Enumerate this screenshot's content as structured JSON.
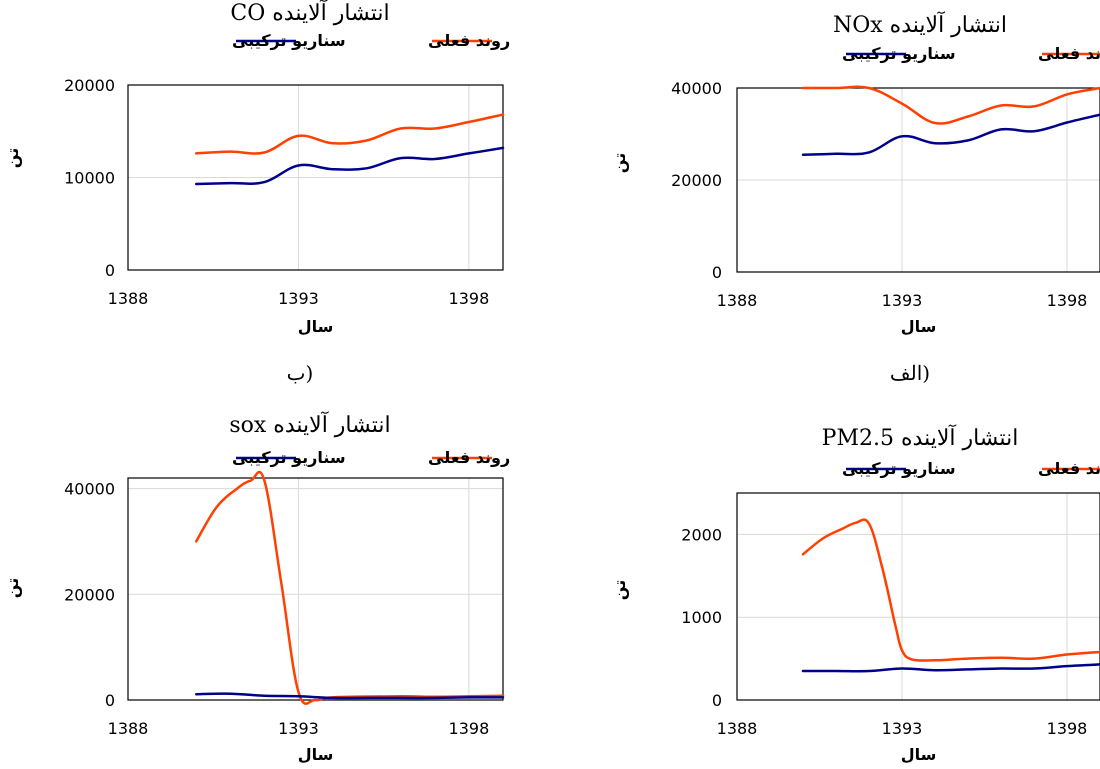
{
  "colors": {
    "actual": "#ff4000",
    "scenario": "#00008b",
    "grid": "#d9d9d9"
  },
  "captions": {
    "left": "ب)",
    "right": "الف)"
  },
  "chart_data": [
    {
      "id": "co",
      "type": "line",
      "title": "انتشار آلاینده CO",
      "xlabel": "سال",
      "ylabel": "تن",
      "xlim": [
        1388,
        1399
      ],
      "ylim": [
        0,
        20000
      ],
      "yticks": [
        0,
        10000,
        20000
      ],
      "xticks": [
        1388,
        1393,
        1398
      ],
      "grid": true,
      "legend_position": "top",
      "series": [
        {
          "name": "روند فعلی",
          "color_key": "actual",
          "x": [
            1390,
            1391,
            1392,
            1393,
            1394,
            1395,
            1396,
            1397,
            1398,
            1399
          ],
          "y": [
            12600,
            12800,
            12700,
            14500,
            13700,
            14000,
            15300,
            15300,
            16000,
            16800
          ]
        },
        {
          "name": "سناریو ترکیبی",
          "color_key": "scenario",
          "x": [
            1390,
            1391,
            1392,
            1393,
            1394,
            1395,
            1396,
            1397,
            1398,
            1399
          ],
          "y": [
            9300,
            9400,
            9500,
            11300,
            10900,
            11000,
            12100,
            12000,
            12600,
            13200
          ]
        }
      ]
    },
    {
      "id": "nox",
      "type": "line",
      "title": "انتشار آلاینده NOx",
      "xlabel": "سال",
      "ylabel": "تن",
      "xlim": [
        1388,
        1399
      ],
      "ylim": [
        0,
        40000
      ],
      "yticks": [
        0,
        20000,
        40000
      ],
      "xticks": [
        1388,
        1393,
        1398
      ],
      "grid": true,
      "legend_position": "top",
      "series": [
        {
          "name": "روند فعلی",
          "color_key": "actual",
          "x": [
            1390,
            1391,
            1392,
            1393,
            1394,
            1395,
            1396,
            1397,
            1398,
            1399
          ],
          "y": [
            41200,
            42500,
            42000,
            36600,
            32400,
            33800,
            36200,
            36000,
            38600,
            40500
          ]
        },
        {
          "name": "سناریو ترکیبی",
          "color_key": "scenario",
          "x": [
            1390,
            1391,
            1392,
            1393,
            1394,
            1395,
            1396,
            1397,
            1398,
            1399
          ],
          "y": [
            25500,
            25700,
            26000,
            29500,
            28000,
            28600,
            31000,
            30600,
            32500,
            34200
          ]
        }
      ]
    },
    {
      "id": "sox",
      "type": "line",
      "title": "انتشار آلاینده sox",
      "xlabel": "سال",
      "ylabel": "تن",
      "xlim": [
        1388,
        1399
      ],
      "ylim": [
        0,
        42000
      ],
      "yticks": [
        0,
        20000,
        40000
      ],
      "xticks": [
        1388,
        1393,
        1398
      ],
      "grid": true,
      "legend_position": "top",
      "series": [
        {
          "name": "روند فعلی",
          "color_key": "actual",
          "x": [
            1390,
            1390.6,
            1391.2,
            1391.6,
            1392,
            1392.5,
            1393,
            1393.5,
            1394,
            1396,
            1397,
            1398,
            1399
          ],
          "y": [
            30000,
            36500,
            40000,
            41500,
            41500,
            22000,
            1500,
            0,
            500,
            700,
            600,
            700,
            800
          ]
        },
        {
          "name": "سناریو ترکیبی",
          "color_key": "scenario",
          "x": [
            1390,
            1391,
            1392,
            1393,
            1394,
            1395,
            1396,
            1397,
            1398,
            1399
          ],
          "y": [
            1100,
            1200,
            800,
            700,
            400,
            400,
            400,
            400,
            500,
            500
          ]
        }
      ]
    },
    {
      "id": "pm25",
      "type": "line",
      "title": "انتشار آلاینده PM2.5",
      "xlabel": "سال",
      "ylabel": "تن",
      "xlim": [
        1388,
        1399
      ],
      "ylim": [
        0,
        2500
      ],
      "yticks": [
        0,
        1000,
        2000
      ],
      "xticks": [
        1388,
        1393,
        1398
      ],
      "grid": true,
      "legend_position": "top",
      "series": [
        {
          "name": "روند فعلی",
          "color_key": "actual",
          "x": [
            1390,
            1390.6,
            1391.2,
            1391.6,
            1392,
            1392.4,
            1392.8,
            1393,
            1393.3,
            1394,
            1395,
            1396,
            1397,
            1398,
            1399
          ],
          "y": [
            1760,
            1950,
            2070,
            2140,
            2130,
            1600,
            900,
            600,
            490,
            480,
            500,
            510,
            500,
            550,
            580
          ]
        },
        {
          "name": "سناریو ترکیبی",
          "color_key": "scenario",
          "x": [
            1390,
            1391,
            1392,
            1393,
            1394,
            1395,
            1396,
            1397,
            1398,
            1399
          ],
          "y": [
            350,
            350,
            350,
            380,
            360,
            370,
            380,
            380,
            410,
            430
          ]
        }
      ]
    }
  ]
}
